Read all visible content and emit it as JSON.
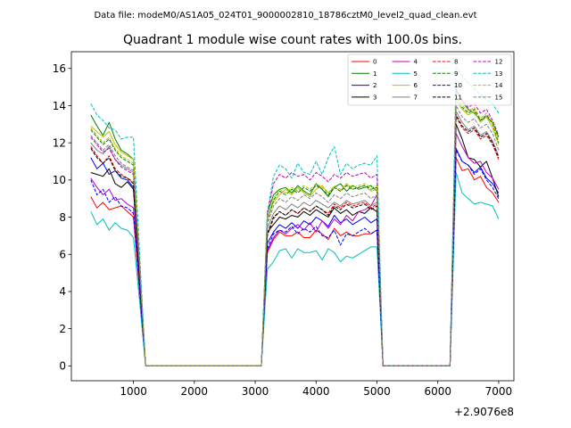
{
  "figure_title": "Data file: modeM0/AS1A05_024T01_9000002810_18786cztM0_level2_quad_clean.evt",
  "chart_data": {
    "type": "line",
    "title": "Quadrant 1 module wise count rates with 100.0s bins.",
    "xlabel": "",
    "ylabel": "",
    "x_offset_label": "+2.9076e8",
    "xlim": [
      -20,
      7250
    ],
    "ylim": [
      -0.8,
      16.9
    ],
    "xticks": [
      1000,
      2000,
      3000,
      4000,
      5000,
      6000,
      7000
    ],
    "yticks": [
      0,
      2,
      4,
      6,
      8,
      10,
      12,
      14,
      16
    ],
    "grid": false,
    "legend_position": "top-right",
    "x": [
      300,
      400,
      500,
      600,
      700,
      800,
      900,
      1000,
      1100,
      1200,
      1300,
      1400,
      1500,
      1600,
      1700,
      1800,
      1900,
      2000,
      2100,
      2200,
      2300,
      2400,
      2500,
      2600,
      2700,
      2800,
      2900,
      3000,
      3100,
      3200,
      3300,
      3400,
      3500,
      3600,
      3700,
      3800,
      3900,
      4000,
      4100,
      4200,
      4300,
      4400,
      4500,
      4600,
      4700,
      4800,
      4900,
      5000,
      5100,
      5200,
      5300,
      5400,
      5500,
      5600,
      5700,
      5800,
      5900,
      6000,
      6100,
      6200,
      6300,
      6400,
      6500,
      6600,
      6700,
      6800,
      6900,
      7000
    ],
    "series": [
      {
        "name": "0",
        "color": "#ff0000",
        "dash": "solid",
        "values": [
          9.1,
          8.5,
          8.8,
          8.4,
          8.5,
          8.6,
          8.3,
          8.0,
          4.0,
          0,
          0,
          0,
          0,
          0,
          0,
          0,
          0,
          0,
          0,
          0,
          0,
          0,
          0,
          0,
          0,
          0,
          0,
          0,
          0,
          6.1,
          6.8,
          7.2,
          7.0,
          7.0,
          7.2,
          6.9,
          6.9,
          7.3,
          7.1,
          6.8,
          7.4,
          7.0,
          7.2,
          7.0,
          7.0,
          7.1,
          7.1,
          7.3,
          0,
          0,
          0,
          0,
          0,
          0,
          0,
          0,
          0,
          0,
          0,
          0,
          11.2,
          10.5,
          10.6,
          10.0,
          10.2,
          9.6,
          9.3,
          8.8
        ]
      },
      {
        "name": "1",
        "color": "#008000",
        "dash": "solid",
        "values": [
          13.5,
          12.9,
          12.4,
          13.1,
          12.2,
          11.6,
          11.4,
          11.1,
          5.6,
          0,
          0,
          0,
          0,
          0,
          0,
          0,
          0,
          0,
          0,
          0,
          0,
          0,
          0,
          0,
          0,
          0,
          0,
          0,
          0,
          8.2,
          9.2,
          9.5,
          9.6,
          9.3,
          9.7,
          9.4,
          9.2,
          9.8,
          9.5,
          9.1,
          9.6,
          9.8,
          9.4,
          9.7,
          9.5,
          9.6,
          9.7,
          9.4,
          0,
          0,
          0,
          0,
          0,
          0,
          0,
          0,
          0,
          0,
          0,
          0,
          14.9,
          14.2,
          13.8,
          13.6,
          13.2,
          13.4,
          13.1,
          12.3
        ]
      },
      {
        "name": "2",
        "color": "#0000ff",
        "dash": "solid",
        "values": [
          11.2,
          10.6,
          10.9,
          10.3,
          10.5,
          10.1,
          10.0,
          9.6,
          4.8,
          0,
          0,
          0,
          0,
          0,
          0,
          0,
          0,
          0,
          0,
          0,
          0,
          0,
          0,
          0,
          0,
          0,
          0,
          0,
          0,
          6.6,
          7.2,
          7.6,
          7.4,
          7.7,
          7.4,
          7.8,
          7.6,
          8.0,
          7.8,
          7.5,
          8.1,
          7.7,
          7.9,
          7.6,
          7.8,
          8.0,
          7.7,
          7.9,
          0,
          0,
          0,
          0,
          0,
          0,
          0,
          0,
          0,
          0,
          0,
          0,
          11.7,
          11.0,
          10.8,
          10.4,
          10.7,
          10.1,
          9.8,
          9.3
        ]
      },
      {
        "name": "3",
        "color": "#000000",
        "dash": "solid",
        "values": [
          10.4,
          10.3,
          10.2,
          10.6,
          9.8,
          9.6,
          9.9,
          9.5,
          4.7,
          0,
          0,
          0,
          0,
          0,
          0,
          0,
          0,
          0,
          0,
          0,
          0,
          0,
          0,
          0,
          0,
          0,
          0,
          0,
          0,
          7.2,
          7.6,
          8.0,
          7.9,
          8.1,
          8.0,
          8.3,
          8.1,
          8.4,
          8.2,
          8.0,
          8.5,
          8.2,
          8.4,
          8.1,
          8.3,
          8.2,
          8.5,
          8.3,
          0,
          0,
          0,
          0,
          0,
          0,
          0,
          0,
          0,
          0,
          0,
          0,
          13.0,
          12.2,
          11.2,
          11.1,
          10.7,
          11.0,
          10.1,
          9.1
        ]
      },
      {
        "name": "4",
        "color": "#c000c0",
        "dash": "solid",
        "values": [
          10.1,
          9.6,
          9.2,
          9.5,
          8.9,
          9.0,
          8.7,
          8.5,
          4.3,
          0,
          0,
          0,
          0,
          0,
          0,
          0,
          0,
          0,
          0,
          0,
          0,
          0,
          0,
          0,
          0,
          0,
          0,
          0,
          0,
          6.2,
          6.9,
          7.3,
          7.1,
          7.4,
          7.6,
          7.3,
          7.7,
          7.2,
          7.8,
          7.4,
          7.9,
          7.6,
          8.1,
          7.8,
          8.3,
          8.4,
          8.6,
          9.2,
          0,
          0,
          0,
          0,
          0,
          0,
          0,
          0,
          0,
          0,
          0,
          0,
          12.5,
          11.8,
          11.2,
          10.9,
          11.0,
          10.4,
          10.1,
          9.5
        ]
      },
      {
        "name": "5",
        "color": "#00bfbf",
        "dash": "solid",
        "values": [
          8.3,
          7.6,
          7.9,
          7.3,
          7.7,
          7.4,
          7.3,
          6.9,
          3.5,
          0,
          0,
          0,
          0,
          0,
          0,
          0,
          0,
          0,
          0,
          0,
          0,
          0,
          0,
          0,
          0,
          0,
          0,
          0,
          0,
          5.2,
          5.6,
          6.2,
          6.3,
          5.8,
          6.3,
          6.1,
          6.1,
          6.2,
          5.7,
          6.3,
          6.1,
          5.6,
          5.9,
          5.8,
          6.0,
          6.2,
          6.4,
          6.4,
          0,
          0,
          0,
          0,
          0,
          0,
          0,
          0,
          0,
          0,
          0,
          0,
          10.4,
          9.3,
          9.0,
          8.7,
          8.8,
          8.7,
          8.6,
          7.9
        ]
      },
      {
        "name": "6",
        "color": "#bfbf00",
        "dash": "solid",
        "values": [
          12.9,
          12.6,
          12.3,
          12.6,
          11.9,
          11.5,
          11.3,
          11.1,
          5.5,
          0,
          0,
          0,
          0,
          0,
          0,
          0,
          0,
          0,
          0,
          0,
          0,
          0,
          0,
          0,
          0,
          0,
          0,
          0,
          0,
          7.9,
          8.8,
          9.2,
          9.5,
          9.2,
          9.6,
          9.3,
          9.1,
          9.5,
          9.7,
          9.3,
          9.6,
          9.4,
          9.8,
          9.5,
          9.6,
          9.7,
          9.4,
          9.5,
          0,
          0,
          0,
          0,
          0,
          0,
          0,
          0,
          0,
          0,
          0,
          0,
          14.3,
          13.8,
          13.5,
          13.7,
          13.1,
          13.4,
          12.8,
          11.9
        ]
      },
      {
        "name": "7",
        "color": "#808080",
        "dash": "solid",
        "values": [
          12.0,
          11.6,
          11.4,
          11.8,
          11.1,
          10.8,
          10.6,
          10.4,
          5.2,
          0,
          0,
          0,
          0,
          0,
          0,
          0,
          0,
          0,
          0,
          0,
          0,
          0,
          0,
          0,
          0,
          0,
          0,
          0,
          0,
          7.4,
          8.2,
          8.6,
          8.4,
          8.7,
          8.5,
          8.8,
          8.6,
          8.9,
          8.7,
          8.5,
          8.8,
          8.6,
          8.9,
          8.7,
          8.8,
          8.9,
          8.6,
          8.8,
          0,
          0,
          0,
          0,
          0,
          0,
          0,
          0,
          0,
          0,
          0,
          0,
          13.7,
          13.1,
          12.7,
          12.9,
          12.4,
          12.6,
          12.1,
          11.3
        ]
      },
      {
        "name": "8",
        "color": "#ff0000",
        "dash": "dashed",
        "values": [
          11.8,
          11.3,
          10.9,
          11.3,
          10.6,
          10.3,
          10.1,
          9.9,
          5.0,
          0,
          0,
          0,
          0,
          0,
          0,
          0,
          0,
          0,
          0,
          0,
          0,
          0,
          0,
          0,
          0,
          0,
          0,
          0,
          0,
          7.0,
          7.9,
          8.3,
          8.1,
          8.4,
          8.2,
          8.5,
          8.3,
          8.6,
          8.4,
          8.2,
          8.7,
          8.5,
          8.8,
          8.6,
          8.7,
          8.8,
          8.5,
          8.7,
          0,
          0,
          0,
          0,
          0,
          0,
          0,
          0,
          0,
          0,
          0,
          0,
          13.4,
          12.8,
          12.5,
          12.7,
          12.2,
          12.4,
          11.9,
          11.1
        ]
      },
      {
        "name": "9",
        "color": "#008000",
        "dash": "dashed",
        "values": [
          12.7,
          12.3,
          11.9,
          12.2,
          11.6,
          11.2,
          11.0,
          10.8,
          5.4,
          0,
          0,
          0,
          0,
          0,
          0,
          0,
          0,
          0,
          0,
          0,
          0,
          0,
          0,
          0,
          0,
          0,
          0,
          0,
          0,
          7.8,
          8.9,
          9.4,
          9.2,
          9.5,
          9.3,
          9.6,
          9.4,
          9.7,
          9.5,
          9.2,
          9.6,
          9.4,
          9.7,
          9.5,
          9.6,
          9.7,
          9.5,
          9.6,
          0,
          0,
          0,
          0,
          0,
          0,
          0,
          0,
          0,
          0,
          0,
          0,
          14.5,
          13.9,
          13.6,
          13.8,
          13.2,
          13.5,
          13.0,
          12.0
        ]
      },
      {
        "name": "10",
        "color": "#0000ff",
        "dash": "dashed",
        "values": [
          10.0,
          9.2,
          9.5,
          8.8,
          9.1,
          8.6,
          8.5,
          8.2,
          4.1,
          0,
          0,
          0,
          0,
          0,
          0,
          0,
          0,
          0,
          0,
          0,
          0,
          0,
          0,
          0,
          0,
          0,
          0,
          0,
          0,
          6.3,
          7.1,
          7.3,
          7.2,
          7.5,
          7.1,
          7.4,
          7.2,
          7.5,
          7.0,
          6.9,
          7.3,
          6.5,
          7.1,
          7.0,
          7.2,
          7.4,
          7.1,
          7.3,
          0,
          0,
          0,
          0,
          0,
          0,
          0,
          0,
          0,
          0,
          0,
          0,
          11.6,
          11.0,
          10.8,
          10.3,
          10.6,
          10.0,
          9.6,
          9.0
        ]
      },
      {
        "name": "11",
        "color": "#000000",
        "dash": "dashed",
        "values": [
          11.7,
          11.2,
          10.9,
          11.2,
          10.5,
          10.2,
          10.1,
          9.8,
          4.9,
          0,
          0,
          0,
          0,
          0,
          0,
          0,
          0,
          0,
          0,
          0,
          0,
          0,
          0,
          0,
          0,
          0,
          0,
          0,
          0,
          7.1,
          8.0,
          8.3,
          8.1,
          8.4,
          8.2,
          8.5,
          8.3,
          8.6,
          8.4,
          8.1,
          8.6,
          8.4,
          8.7,
          8.5,
          8.6,
          8.7,
          8.4,
          8.6,
          0,
          0,
          0,
          0,
          0,
          0,
          0,
          0,
          0,
          0,
          0,
          0,
          13.5,
          12.9,
          12.6,
          12.8,
          12.3,
          12.5,
          12.0,
          11.2
        ]
      },
      {
        "name": "12",
        "color": "#c000c0",
        "dash": "dashed",
        "values": [
          12.3,
          11.9,
          11.5,
          11.7,
          11.1,
          10.7,
          10.5,
          10.3,
          5.2,
          0,
          0,
          0,
          0,
          0,
          0,
          0,
          0,
          0,
          0,
          0,
          0,
          0,
          0,
          0,
          0,
          0,
          0,
          0,
          0,
          8.1,
          9.8,
          10.3,
          10.1,
          10.4,
          10.2,
          10.3,
          10.0,
          10.4,
          10.2,
          9.9,
          10.3,
          10.1,
          10.4,
          10.2,
          10.3,
          10.4,
          10.1,
          10.3,
          0,
          0,
          0,
          0,
          0,
          0,
          0,
          0,
          0,
          0,
          0,
          0,
          14.8,
          14.3,
          13.9,
          14.1,
          13.6,
          13.8,
          13.2,
          12.4
        ]
      },
      {
        "name": "13",
        "color": "#00bfbf",
        "dash": "dashed",
        "values": [
          14.1,
          13.5,
          13.2,
          12.8,
          12.7,
          12.2,
          12.3,
          12.3,
          6.1,
          0,
          0,
          0,
          0,
          0,
          0,
          0,
          0,
          0,
          0,
          0,
          0,
          0,
          0,
          0,
          0,
          0,
          0,
          0,
          0,
          8.3,
          10.2,
          10.8,
          10.6,
          10.1,
          10.9,
          10.4,
          10.3,
          11.0,
          10.3,
          11.2,
          11.8,
          10.3,
          10.9,
          10.6,
          10.8,
          10.9,
          10.8,
          11.3,
          0,
          0,
          0,
          0,
          0,
          0,
          0,
          0,
          0,
          0,
          0,
          0,
          16.1,
          15.6,
          15.2,
          14.9,
          14.6,
          14.3,
          14.1,
          13.6
        ]
      },
      {
        "name": "14",
        "color": "#bfbf00",
        "dash": "dashed",
        "values": [
          12.8,
          12.4,
          12.0,
          12.3,
          11.7,
          11.3,
          11.1,
          10.9,
          5.4,
          0,
          0,
          0,
          0,
          0,
          0,
          0,
          0,
          0,
          0,
          0,
          0,
          0,
          0,
          0,
          0,
          0,
          0,
          0,
          0,
          7.9,
          9.0,
          9.5,
          9.3,
          9.6,
          9.4,
          9.7,
          9.5,
          9.8,
          9.6,
          9.3,
          9.7,
          9.5,
          9.8,
          9.6,
          9.7,
          9.8,
          9.6,
          9.7,
          0,
          0,
          0,
          0,
          0,
          0,
          0,
          0,
          0,
          0,
          0,
          0,
          14.6,
          14.0,
          13.7,
          13.9,
          13.3,
          13.6,
          13.1,
          12.1
        ]
      },
      {
        "name": "15",
        "color": "#808080",
        "dash": "dashed",
        "values": [
          12.4,
          12.0,
          11.6,
          11.9,
          11.3,
          10.9,
          10.7,
          10.5,
          5.3,
          0,
          0,
          0,
          0,
          0,
          0,
          0,
          0,
          0,
          0,
          0,
          0,
          0,
          0,
          0,
          0,
          0,
          0,
          0,
          0,
          7.6,
          8.6,
          9.0,
          8.8,
          9.1,
          8.9,
          9.2,
          9.0,
          9.3,
          9.1,
          8.8,
          9.2,
          9.0,
          9.3,
          9.1,
          9.2,
          9.3,
          9.0,
          9.2,
          0,
          0,
          0,
          0,
          0,
          0,
          0,
          0,
          0,
          0,
          0,
          0,
          14.0,
          13.4,
          13.1,
          13.3,
          12.8,
          13.0,
          12.5,
          11.6
        ]
      }
    ]
  }
}
